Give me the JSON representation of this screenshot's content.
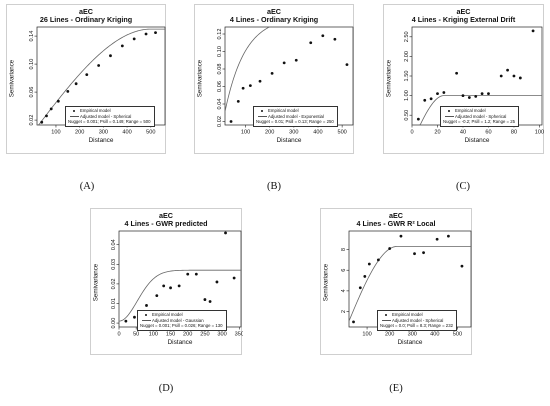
{
  "chart_data": [
    {
      "id": "A",
      "type": "scatter",
      "title": "aEC",
      "subtitle": "26 Lines - Ordinary Kriging",
      "xlabel": "Distance",
      "ylabel": "Semivariance",
      "xlim": [
        20,
        560
      ],
      "ylim": [
        0.013,
        0.153
      ],
      "xticks": [
        100,
        200,
        300,
        400,
        500
      ],
      "yticks": [
        0.02,
        0.06,
        0.1,
        0.14
      ],
      "points": [
        [
          40,
          0.017
        ],
        [
          60,
          0.026
        ],
        [
          80,
          0.036
        ],
        [
          110,
          0.047
        ],
        [
          150,
          0.061
        ],
        [
          185,
          0.072
        ],
        [
          230,
          0.085
        ],
        [
          280,
          0.098
        ],
        [
          330,
          0.112
        ],
        [
          380,
          0.126
        ],
        [
          430,
          0.136
        ],
        [
          480,
          0.143
        ],
        [
          520,
          0.145
        ]
      ],
      "model": {
        "kind": "spherical",
        "nugget": 0.001,
        "psill": 0.149,
        "range": 500
      },
      "legend": {
        "empirical": "Empirical model",
        "adjusted": "Adjusted model - Spherical",
        "params": "Nugget = 0.001; Psill = 0.149; Range = 500"
      },
      "caption": "(A)"
    },
    {
      "id": "B",
      "type": "scatter",
      "title": "aEC",
      "subtitle": "4 Lines - Ordinary Kriging",
      "xlabel": "Distance",
      "ylabel": "Semivariance",
      "xlim": [
        15,
        545
      ],
      "ylim": [
        0.016,
        0.128
      ],
      "xticks": [
        100,
        200,
        300,
        400,
        500
      ],
      "yticks": [
        0.02,
        0.04,
        0.06,
        0.08,
        0.1,
        0.12
      ],
      "points": [
        [
          40,
          0.02
        ],
        [
          70,
          0.043
        ],
        [
          90,
          0.058
        ],
        [
          120,
          0.061
        ],
        [
          160,
          0.066
        ],
        [
          210,
          0.075
        ],
        [
          260,
          0.087
        ],
        [
          310,
          0.09
        ],
        [
          370,
          0.11
        ],
        [
          420,
          0.118
        ],
        [
          470,
          0.114
        ],
        [
          520,
          0.085
        ]
      ],
      "model": {
        "kind": "exponential",
        "nugget": 0.01,
        "psill": 0.13,
        "range": 250
      },
      "legend": {
        "empirical": "Empirical model",
        "adjusted": "Adjusted model - Exponential",
        "params": "Nugget = 0.01; Psill = 0.13; Range = 250"
      },
      "caption": "(B)"
    },
    {
      "id": "C",
      "type": "scatter",
      "title": "aEC",
      "subtitle": "4 Lines - Kriging External Drift",
      "xlabel": "Distance",
      "ylabel": "Semivariance",
      "xlim": [
        0,
        102
      ],
      "ylim": [
        0.25,
        2.75
      ],
      "xticks": [
        0,
        20,
        40,
        60,
        80,
        100
      ],
      "yticks": [
        0.5,
        1.0,
        1.5,
        2.0,
        2.5
      ],
      "points": [
        [
          5,
          0.4
        ],
        [
          10,
          0.88
        ],
        [
          15,
          0.92
        ],
        [
          20,
          1.05
        ],
        [
          25,
          1.08
        ],
        [
          35,
          1.57
        ],
        [
          40,
          1.0
        ],
        [
          45,
          0.95
        ],
        [
          50,
          0.98
        ],
        [
          55,
          1.05
        ],
        [
          60,
          1.05
        ],
        [
          70,
          1.5
        ],
        [
          75,
          1.65
        ],
        [
          80,
          1.5
        ],
        [
          85,
          1.45
        ],
        [
          95,
          2.65
        ]
      ],
      "model": {
        "kind": "spherical",
        "nugget": -0.2,
        "psill": 1.2,
        "range": 25
      },
      "legend": {
        "empirical": "Empirical model",
        "adjusted": "Adjusted model - Spherical",
        "params": "Nugget = -0.2; Psill = 1.2; Range = 25"
      },
      "caption": "(C)"
    },
    {
      "id": "D",
      "type": "scatter",
      "title": "aEC",
      "subtitle": "4 Lines - GWR predicted",
      "xlabel": "Distance",
      "ylabel": "Semivariance",
      "xlim": [
        0,
        355
      ],
      "ylim": [
        -0.002,
        0.047
      ],
      "xticks": [
        0,
        50,
        100,
        150,
        200,
        250,
        300,
        350
      ],
      "yticks": [
        0.0,
        0.01,
        0.02,
        0.03,
        0.04
      ],
      "points": [
        [
          20,
          0.001
        ],
        [
          45,
          0.003
        ],
        [
          80,
          0.009
        ],
        [
          110,
          0.014
        ],
        [
          130,
          0.019
        ],
        [
          150,
          0.018
        ],
        [
          175,
          0.019
        ],
        [
          200,
          0.025
        ],
        [
          225,
          0.025
        ],
        [
          250,
          0.012
        ],
        [
          265,
          0.011
        ],
        [
          285,
          0.021
        ],
        [
          310,
          0.046
        ],
        [
          335,
          0.023
        ]
      ],
      "model": {
        "kind": "gaussian",
        "nugget": 0.001,
        "psill": 0.026,
        "range": 130
      },
      "legend": {
        "empirical": "Empirical model",
        "adjusted": "Adjusted model - Gaussian",
        "params": "Nugget = 0.001; Psill = 0.026; Range = 130"
      },
      "caption": "(D)"
    },
    {
      "id": "E",
      "type": "scatter",
      "title": "aEC",
      "subtitle": "4 Lines - GWR R² Local",
      "xlabel": "Distance",
      "ylabel": "Semivariance",
      "xlim": [
        20,
        560
      ],
      "ylim": [
        0.5,
        9.8
      ],
      "xticks": [
        100,
        200,
        300,
        400,
        500
      ],
      "yticks": [
        2,
        4,
        6,
        8
      ],
      "points": [
        [
          40,
          1.0
        ],
        [
          70,
          4.3
        ],
        [
          90,
          5.4
        ],
        [
          110,
          6.6
        ],
        [
          150,
          7.0
        ],
        [
          200,
          8.1
        ],
        [
          250,
          9.3
        ],
        [
          310,
          7.6
        ],
        [
          350,
          7.7
        ],
        [
          410,
          9.0
        ],
        [
          460,
          9.3
        ],
        [
          520,
          6.4
        ]
      ],
      "model": {
        "kind": "spherical",
        "nugget": 0.0,
        "psill": 8.3,
        "range": 232
      },
      "legend": {
        "empirical": "Empirical model",
        "adjusted": "Adjusted model - Spherical",
        "params": "Nugget = 0.0; Psill = 8.3; Range = 232"
      },
      "caption": "(E)"
    }
  ]
}
